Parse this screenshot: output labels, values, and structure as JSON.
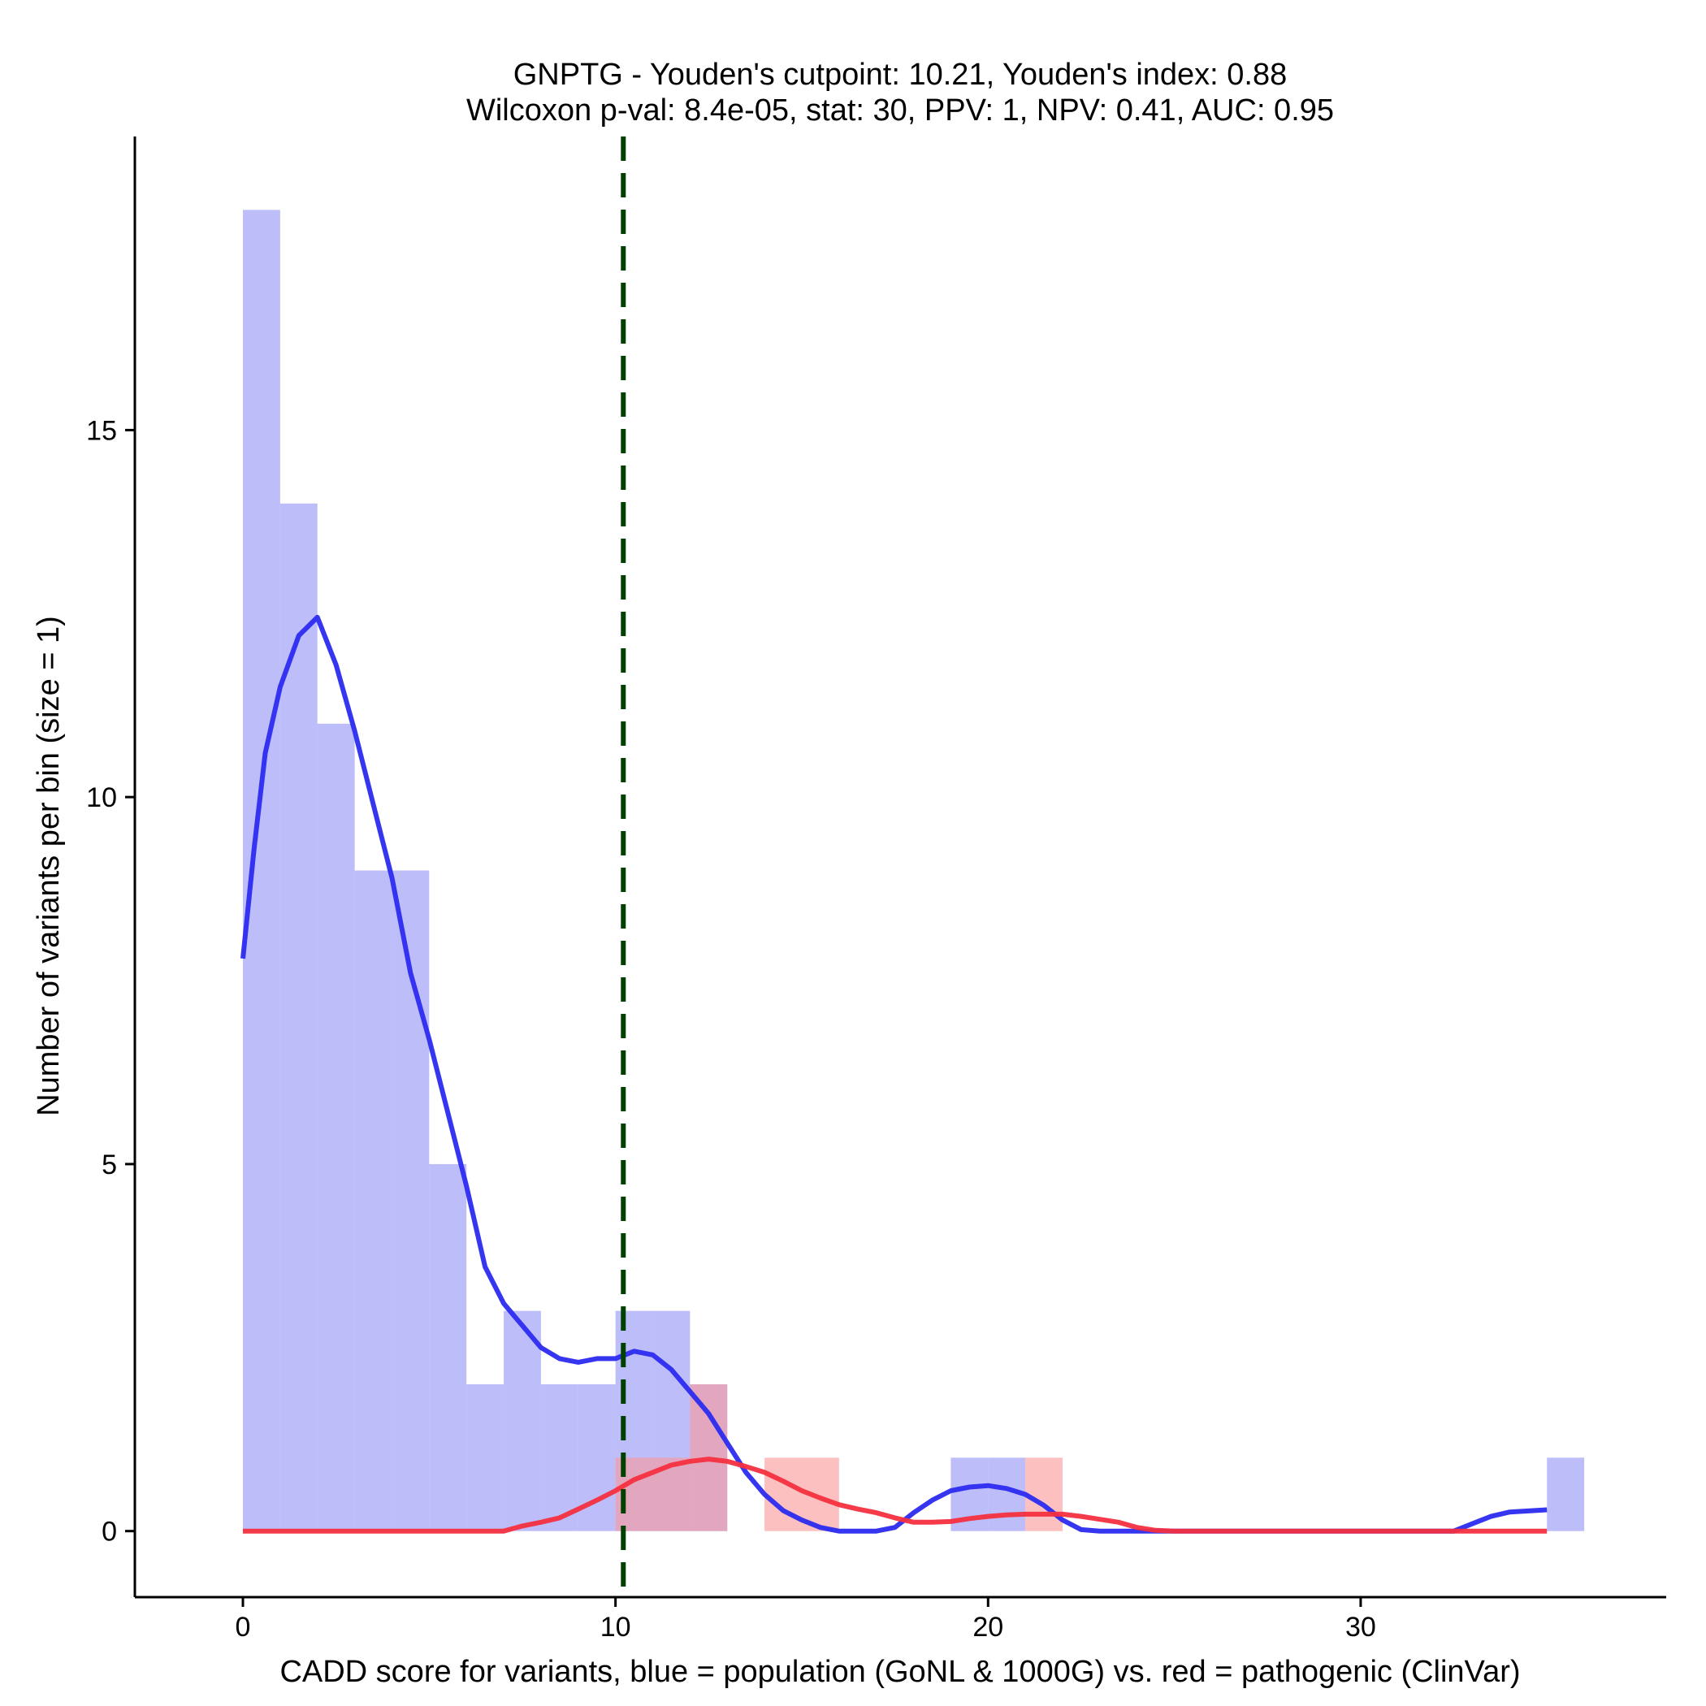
{
  "chart_data": {
    "type": "bar",
    "title": "GNPTG - Youden's cutpoint: 10.21, Youden's index: 0.88",
    "subtitle": "Wilcoxon p-val: 8.4e-05, stat: 30, PPV: 1, NPV: 0.41, AUC: 0.95",
    "xlabel": "CADD score for variants, blue = population (GoNL & 1000G) vs. red = pathogenic (ClinVar)",
    "ylabel": "Number of variants per bin (size = 1)",
    "xlim": [
      -2.9,
      38.2
    ],
    "ylim": [
      -0.9,
      19.0
    ],
    "x_ticks": [
      0,
      10,
      20,
      30
    ],
    "y_ticks": [
      0,
      5,
      10,
      15
    ],
    "bin_size": 1,
    "cutpoint": 10.21,
    "series": [
      {
        "name": "population (GoNL & 1000G)",
        "color": "#8080f5",
        "bins": [
          {
            "x0": 0,
            "x1": 1,
            "count": 18
          },
          {
            "x0": 1,
            "x1": 2,
            "count": 14
          },
          {
            "x0": 2,
            "x1": 3,
            "count": 11
          },
          {
            "x0": 3,
            "x1": 4,
            "count": 9
          },
          {
            "x0": 4,
            "x1": 5,
            "count": 9
          },
          {
            "x0": 5,
            "x1": 6,
            "count": 5
          },
          {
            "x0": 6,
            "x1": 7,
            "count": 2
          },
          {
            "x0": 7,
            "x1": 8,
            "count": 3
          },
          {
            "x0": 8,
            "x1": 9,
            "count": 2
          },
          {
            "x0": 9,
            "x1": 10,
            "count": 2
          },
          {
            "x0": 10,
            "x1": 11,
            "count": 3
          },
          {
            "x0": 11,
            "x1": 12,
            "count": 3
          },
          {
            "x0": 12,
            "x1": 13,
            "count": 2
          },
          {
            "x0": 19,
            "x1": 20,
            "count": 1
          },
          {
            "x0": 20,
            "x1": 21,
            "count": 1
          },
          {
            "x0": 35,
            "x1": 36,
            "count": 1
          }
        ],
        "density_color": "#2b2bf0",
        "density": [
          [
            0,
            7.8
          ],
          [
            0.3,
            9.3
          ],
          [
            0.6,
            10.6
          ],
          [
            1,
            11.5
          ],
          [
            1.5,
            12.2
          ],
          [
            2,
            12.45
          ],
          [
            2.5,
            11.8
          ],
          [
            3,
            10.9
          ],
          [
            3.5,
            9.9
          ],
          [
            4,
            8.9
          ],
          [
            4.5,
            7.6
          ],
          [
            5,
            6.7
          ],
          [
            5.5,
            5.7
          ],
          [
            6,
            4.7
          ],
          [
            6.5,
            3.6
          ],
          [
            7,
            3.1
          ],
          [
            7.5,
            2.8
          ],
          [
            8,
            2.5
          ],
          [
            8.5,
            2.35
          ],
          [
            9,
            2.3
          ],
          [
            9.5,
            2.35
          ],
          [
            10,
            2.35
          ],
          [
            10.5,
            2.45
          ],
          [
            11,
            2.4
          ],
          [
            11.5,
            2.2
          ],
          [
            12,
            1.9
          ],
          [
            12.5,
            1.6
          ],
          [
            13,
            1.2
          ],
          [
            13.5,
            0.8
          ],
          [
            14,
            0.5
          ],
          [
            14.5,
            0.28
          ],
          [
            15,
            0.15
          ],
          [
            15.5,
            0.05
          ],
          [
            16,
            0
          ],
          [
            17,
            0
          ],
          [
            17.5,
            0.05
          ],
          [
            18,
            0.25
          ],
          [
            18.5,
            0.42
          ],
          [
            19,
            0.55
          ],
          [
            19.5,
            0.6
          ],
          [
            20,
            0.62
          ],
          [
            20.5,
            0.58
          ],
          [
            21,
            0.5
          ],
          [
            21.5,
            0.35
          ],
          [
            22,
            0.15
          ],
          [
            22.5,
            0.02
          ],
          [
            23,
            0
          ],
          [
            32.5,
            0
          ],
          [
            33,
            0.1
          ],
          [
            33.5,
            0.2
          ],
          [
            34,
            0.26
          ],
          [
            35,
            0.29
          ]
        ]
      },
      {
        "name": "pathogenic (ClinVar)",
        "color": "#fa9696",
        "bins": [
          {
            "x0": 10,
            "x1": 11,
            "count": 1
          },
          {
            "x0": 11,
            "x1": 12,
            "count": 1
          },
          {
            "x0": 12,
            "x1": 13,
            "count": 2
          },
          {
            "x0": 14,
            "x1": 15,
            "count": 1
          },
          {
            "x0": 15,
            "x1": 16,
            "count": 1
          },
          {
            "x0": 21,
            "x1": 22,
            "count": 1
          }
        ],
        "density_color": "#f42f3f",
        "density": [
          [
            0,
            0
          ],
          [
            7,
            0
          ],
          [
            7.5,
            0.07
          ],
          [
            8,
            0.12
          ],
          [
            8.5,
            0.18
          ],
          [
            9,
            0.3
          ],
          [
            9.5,
            0.42
          ],
          [
            10,
            0.55
          ],
          [
            10.5,
            0.7
          ],
          [
            11,
            0.8
          ],
          [
            11.5,
            0.9
          ],
          [
            12,
            0.95
          ],
          [
            12.5,
            0.98
          ],
          [
            13,
            0.95
          ],
          [
            13.5,
            0.88
          ],
          [
            14,
            0.8
          ],
          [
            14.5,
            0.68
          ],
          [
            15,
            0.55
          ],
          [
            15.5,
            0.45
          ],
          [
            16,
            0.36
          ],
          [
            16.5,
            0.3
          ],
          [
            17,
            0.25
          ],
          [
            17.5,
            0.18
          ],
          [
            18,
            0.12
          ],
          [
            18.5,
            0.12
          ],
          [
            19,
            0.13
          ],
          [
            19.5,
            0.17
          ],
          [
            20,
            0.2
          ],
          [
            20.5,
            0.22
          ],
          [
            21,
            0.23
          ],
          [
            21.5,
            0.23
          ],
          [
            22,
            0.23
          ],
          [
            22.5,
            0.2
          ],
          [
            23,
            0.16
          ],
          [
            23.5,
            0.12
          ],
          [
            24,
            0.05
          ],
          [
            24.5,
            0.01
          ],
          [
            25,
            0
          ],
          [
            35,
            0
          ]
        ]
      }
    ],
    "cutpoint_color": "#004000"
  }
}
